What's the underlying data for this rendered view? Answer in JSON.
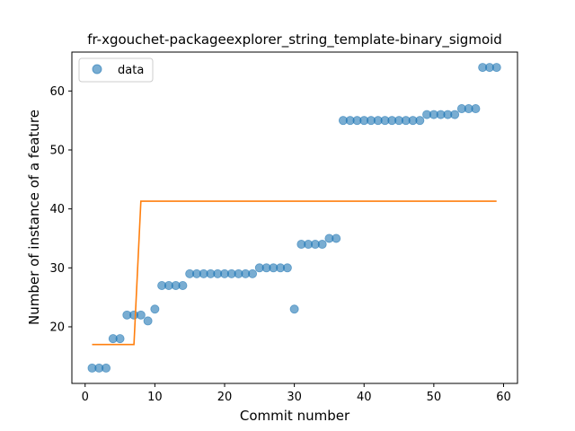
{
  "chart_data": {
    "type": "scatter",
    "title": "fr-xgouchet-packageexplorer_string_template-binary_sigmoid",
    "xlabel": "Commit number",
    "ylabel": "Number of instance of a feature",
    "xlim": [
      -1.9,
      62.0
    ],
    "ylim": [
      10.4,
      66.6
    ],
    "xticks": [
      0,
      10,
      20,
      30,
      40,
      50,
      60
    ],
    "yticks": [
      20,
      30,
      40,
      50,
      60
    ],
    "grid": false,
    "legend": {
      "placement": "top-left",
      "entries": [
        "data"
      ]
    },
    "colors": {
      "points": "#1f77b4",
      "fit": "#ff7f0e"
    },
    "series": [
      {
        "name": "data",
        "kind": "scatter",
        "x": [
          1,
          2,
          3,
          4,
          5,
          6,
          7,
          8,
          9,
          10,
          11,
          12,
          13,
          14,
          15,
          16,
          17,
          18,
          19,
          20,
          21,
          22,
          23,
          24,
          25,
          26,
          27,
          28,
          29,
          30,
          31,
          32,
          33,
          34,
          35,
          36,
          37,
          38,
          39,
          40,
          41,
          42,
          43,
          44,
          45,
          46,
          47,
          48,
          49,
          50,
          51,
          52,
          53,
          54,
          55,
          56,
          57,
          58,
          59
        ],
        "y": [
          13,
          13,
          13,
          18,
          18,
          22,
          22,
          22,
          21,
          23,
          27,
          27,
          27,
          27,
          29,
          29,
          29,
          29,
          29,
          29,
          29,
          29,
          29,
          29,
          30,
          30,
          30,
          30,
          30,
          23,
          34,
          34,
          34,
          34,
          35,
          35,
          55,
          55,
          55,
          55,
          55,
          55,
          55,
          55,
          55,
          55,
          55,
          55,
          56,
          56,
          56,
          56,
          56,
          57,
          57,
          57,
          64,
          64,
          64
        ]
      },
      {
        "kind": "line",
        "x": [
          1,
          7,
          8,
          59
        ],
        "y": [
          17.0,
          17.0,
          41.3,
          41.3
        ]
      }
    ]
  }
}
